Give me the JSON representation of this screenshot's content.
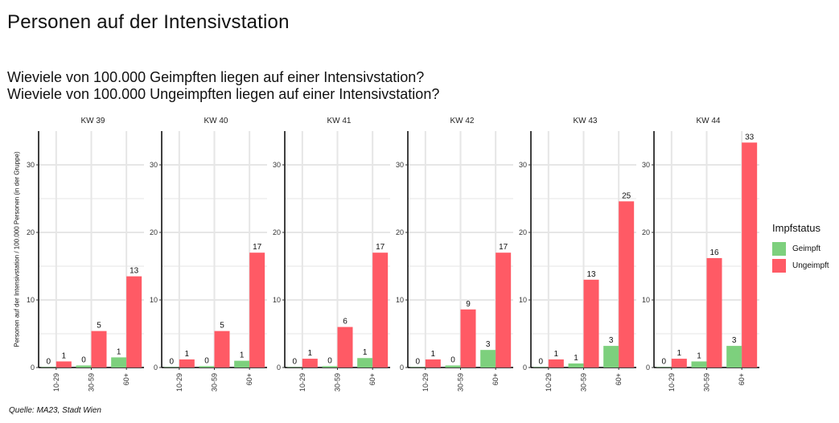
{
  "header": {
    "title": "Personen auf der Intensivstation",
    "subtitle_line1": "Wieviele von 100.000 Geimpften liegen auf einer Intensivstation?",
    "subtitle_line2": "Wieviele von 100.000 Ungeimpften liegen auf einer Intensivstation?"
  },
  "source": "Quelle: MA23, Stadt Wien",
  "colors": {
    "geimpft": "#7dd07d",
    "ungeimpft": "#ff5a65",
    "grid": "#e6e6e6",
    "axis": "#000000"
  },
  "chart_data": {
    "type": "bar",
    "ylabel": "Personen auf der Intensivstation / 100.000 Personen (in der Gruppe)",
    "ylim": [
      0,
      35
    ],
    "yticks": [
      0,
      10,
      20,
      30
    ],
    "grid": true,
    "legend_position": "right",
    "legend_title": "Impfstatus",
    "categories": [
      "10-29",
      "30-59",
      "60+"
    ],
    "series_names": [
      "Geimpft",
      "Ungeimpft"
    ],
    "panels": [
      {
        "name": "KW 39",
        "series": [
          {
            "name": "Geimpft",
            "values": [
              0,
              0,
              1
            ]
          },
          {
            "name": "Ungeimpft",
            "values": [
              1,
              5,
              13
            ]
          }
        ]
      },
      {
        "name": "KW 40",
        "series": [
          {
            "name": "Geimpft",
            "values": [
              0,
              0,
              1
            ]
          },
          {
            "name": "Ungeimpft",
            "values": [
              1,
              5,
              17
            ]
          }
        ]
      },
      {
        "name": "KW 41",
        "series": [
          {
            "name": "Geimpft",
            "values": [
              0,
              0,
              1
            ]
          },
          {
            "name": "Ungeimpft",
            "values": [
              1,
              6,
              17
            ]
          }
        ]
      },
      {
        "name": "KW 42",
        "series": [
          {
            "name": "Geimpft",
            "values": [
              0,
              0,
              3
            ]
          },
          {
            "name": "Ungeimpft",
            "values": [
              1,
              9,
              17
            ]
          }
        ]
      },
      {
        "name": "KW 43",
        "series": [
          {
            "name": "Geimpft",
            "values": [
              0,
              1,
              3
            ]
          },
          {
            "name": "Ungeimpft",
            "values": [
              1,
              13,
              25
            ]
          }
        ]
      },
      {
        "name": "KW 44",
        "series": [
          {
            "name": "Geimpft",
            "values": [
              0,
              1,
              3
            ]
          },
          {
            "name": "Ungeimpft",
            "values": [
              1,
              16,
              33
            ]
          }
        ]
      }
    ],
    "bar_values": [
      {
        "geimpft": [
          0.05,
          0.3,
          1.5
        ],
        "ungeimpft": [
          0.9,
          5.4,
          13.5
        ]
      },
      {
        "geimpft": [
          0.05,
          0.2,
          1.0
        ],
        "ungeimpft": [
          1.2,
          5.4,
          17.0
        ]
      },
      {
        "geimpft": [
          0.05,
          0.2,
          1.4
        ],
        "ungeimpft": [
          1.3,
          6.0,
          17.0
        ]
      },
      {
        "geimpft": [
          0.05,
          0.3,
          2.6
        ],
        "ungeimpft": [
          1.2,
          8.6,
          17.0
        ]
      },
      {
        "geimpft": [
          0.05,
          0.6,
          3.2
        ],
        "ungeimpft": [
          1.2,
          13.0,
          24.6
        ]
      },
      {
        "geimpft": [
          0.05,
          0.9,
          3.2
        ],
        "ungeimpft": [
          1.3,
          16.2,
          33.3
        ]
      }
    ]
  }
}
